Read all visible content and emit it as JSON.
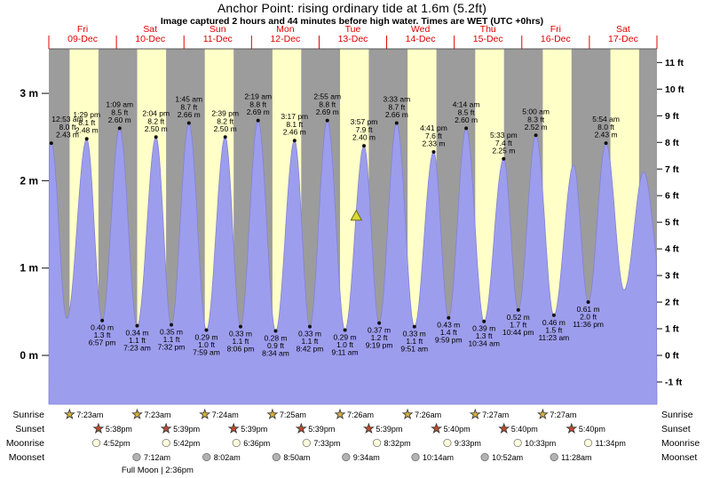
{
  "title": "Anchor Point: rising ordinary tide at 1.6m (5.2ft)",
  "subtitle": "Image captured 2 hours and 44 minutes before high water. Times are WET (UTC +0hrs)",
  "colors": {
    "night_band": "#9c9c9c",
    "day_band": "#ffffc8",
    "tide_fill": "#9d9ded",
    "tide_stroke": "#8282d8",
    "day_label": "#e00000",
    "marker_fill": "#d8d837",
    "marker_stroke": "#6b6b14",
    "axis_text": "#000000"
  },
  "chart_data": {
    "type": "area",
    "title": "Anchor Point: rising ordinary tide at 1.6m (5.2ft)",
    "x_axis": {
      "unit": "days",
      "start_label": "09-Dec",
      "end_label": "17-Dec",
      "hours_span": 216
    },
    "y_axis_m": [
      {
        "v": 3,
        "label": "3 m"
      },
      {
        "v": 2,
        "label": "2 m"
      },
      {
        "v": 1,
        "label": "1 m"
      },
      {
        "v": 0,
        "label": "0 m"
      }
    ],
    "y_axis_ft": [
      {
        "v": 11,
        "label": "11 ft"
      },
      {
        "v": 10,
        "label": "10 ft"
      },
      {
        "v": 9,
        "label": "9 ft"
      },
      {
        "v": 8,
        "label": "8 ft"
      },
      {
        "v": 7,
        "label": "7 ft"
      },
      {
        "v": 6,
        "label": "6 ft"
      },
      {
        "v": 5,
        "label": "5 ft"
      },
      {
        "v": 4,
        "label": "4 ft"
      },
      {
        "v": 3,
        "label": "3 ft"
      },
      {
        "v": 2,
        "label": "2 ft"
      },
      {
        "v": 1,
        "label": "1 ft"
      },
      {
        "v": 0,
        "label": "0 ft"
      },
      {
        "v": -1,
        "label": "-1 ft"
      }
    ],
    "days": [
      {
        "name": "Fri",
        "date": "09-Dec",
        "sunrise_t": 7.38,
        "sunset_t": 17.63
      },
      {
        "name": "Sat",
        "date": "10-Dec",
        "sunrise_t": 31.38,
        "sunset_t": 41.65
      },
      {
        "name": "Sun",
        "date": "11-Dec",
        "sunrise_t": 55.4,
        "sunset_t": 65.65
      },
      {
        "name": "Mon",
        "date": "12-Dec",
        "sunrise_t": 79.42,
        "sunset_t": 89.65
      },
      {
        "name": "Tue",
        "date": "13-Dec",
        "sunrise_t": 103.43,
        "sunset_t": 113.65
      },
      {
        "name": "Wed",
        "date": "14-Dec",
        "sunrise_t": 127.43,
        "sunset_t": 137.67
      },
      {
        "name": "Thu",
        "date": "15-Dec",
        "sunrise_t": 151.45,
        "sunset_t": 161.67
      },
      {
        "name": "Fri",
        "date": "16-Dec",
        "sunrise_t": 175.45,
        "sunset_t": 185.67
      },
      {
        "name": "Sat",
        "date": "17-Dec",
        "sunrise_t": 199.47,
        "sunset_t": 209.68
      }
    ],
    "tide_extremes": [
      {
        "t": -5.6,
        "m": 0.45,
        "type": "low"
      },
      {
        "t": 0.88,
        "m": 2.43,
        "type": "high",
        "labels": [
          "12:53 am",
          "8.0 ft",
          "2.43 m"
        ]
      },
      {
        "t": 6.4,
        "m": 0.42,
        "type": "low"
      },
      {
        "t": 13.48,
        "m": 2.48,
        "type": "high",
        "labels": [
          "1:29 pm",
          "8.1 ft",
          "2.48 m"
        ]
      },
      {
        "t": 18.95,
        "m": 0.4,
        "type": "low",
        "labels": [
          "0.40 m",
          "1.3 ft",
          "6:57 pm"
        ]
      },
      {
        "t": 25.15,
        "m": 2.6,
        "type": "high",
        "labels": [
          "1:09 am",
          "8.5 ft",
          "2.60 m"
        ]
      },
      {
        "t": 31.38,
        "m": 0.34,
        "type": "low",
        "labels": [
          "0.34 m",
          "1.1 ft",
          "7:23 am"
        ]
      },
      {
        "t": 38.07,
        "m": 2.5,
        "type": "high",
        "labels": [
          "2:04 pm",
          "8.2 ft",
          "2.50 m"
        ]
      },
      {
        "t": 43.53,
        "m": 0.35,
        "type": "low",
        "labels": [
          "0.35 m",
          "1.1 ft",
          "7:32 pm"
        ]
      },
      {
        "t": 49.75,
        "m": 2.66,
        "type": "high",
        "labels": [
          "1:45 am",
          "8.7 ft",
          "2.66 m"
        ]
      },
      {
        "t": 55.98,
        "m": 0.29,
        "type": "low",
        "labels": [
          "0.29 m",
          "1.0 ft",
          "7:59 am"
        ]
      },
      {
        "t": 62.65,
        "m": 2.5,
        "type": "high",
        "labels": [
          "2:39 pm",
          "8.2 ft",
          "2.50 m"
        ]
      },
      {
        "t": 68.1,
        "m": 0.33,
        "type": "low",
        "labels": [
          "0.33 m",
          "1.1 ft",
          "8:06 pm"
        ]
      },
      {
        "t": 74.32,
        "m": 2.69,
        "type": "high",
        "labels": [
          "2:19 am",
          "8.8 ft",
          "2.69 m"
        ]
      },
      {
        "t": 80.57,
        "m": 0.28,
        "type": "low",
        "labels": [
          "0.28 m",
          "0.9 ft",
          "8:34 am"
        ]
      },
      {
        "t": 87.28,
        "m": 2.46,
        "type": "high",
        "labels": [
          "3:17 pm",
          "8.1 ft",
          "2.46 m"
        ]
      },
      {
        "t": 92.7,
        "m": 0.33,
        "type": "low",
        "labels": [
          "0.33 m",
          "1.1 ft",
          "8:42 pm"
        ]
      },
      {
        "t": 98.92,
        "m": 2.69,
        "type": "high",
        "labels": [
          "2:55 am",
          "8.8 ft",
          "2.69 m"
        ]
      },
      {
        "t": 105.18,
        "m": 0.29,
        "type": "low",
        "labels": [
          "0.29 m",
          "1.0 ft",
          "9:11 am"
        ]
      },
      {
        "t": 111.95,
        "m": 2.4,
        "type": "high",
        "labels": [
          "3:57 pm",
          "7.9 ft",
          "2.40 m"
        ]
      },
      {
        "t": 117.32,
        "m": 0.37,
        "type": "low",
        "labels": [
          "0.37 m",
          "1.2 ft",
          "9:19 pm"
        ]
      },
      {
        "t": 123.55,
        "m": 2.66,
        "type": "high",
        "labels": [
          "3:33 am",
          "8.7 ft",
          "2.66 m"
        ]
      },
      {
        "t": 129.85,
        "m": 0.33,
        "type": "low",
        "labels": [
          "0.33 m",
          "1.1 ft",
          "9:51 am"
        ]
      },
      {
        "t": 136.68,
        "m": 2.33,
        "type": "high",
        "labels": [
          "4:41 pm",
          "7.6 ft",
          "2.33 m"
        ]
      },
      {
        "t": 141.98,
        "m": 0.43,
        "type": "low",
        "labels": [
          "0.43 m",
          "1.4 ft",
          "9:59 pm"
        ]
      },
      {
        "t": 148.23,
        "m": 2.6,
        "type": "high",
        "labels": [
          "4:14 am",
          "8.5 ft",
          "2.60 m"
        ]
      },
      {
        "t": 154.57,
        "m": 0.39,
        "type": "low",
        "labels": [
          "0.39 m",
          "1.3 ft",
          "10:34 am"
        ]
      },
      {
        "t": 161.55,
        "m": 2.25,
        "type": "high",
        "labels": [
          "5:33 pm",
          "7.4 ft",
          "2.25 m"
        ]
      },
      {
        "t": 166.73,
        "m": 0.52,
        "type": "low",
        "labels": [
          "0.52 m",
          "1.7 ft",
          "10:44 pm"
        ]
      },
      {
        "t": 173.0,
        "m": 2.52,
        "type": "high",
        "labels": [
          "5:00 am",
          "8.3 ft",
          "2.52 m"
        ]
      },
      {
        "t": 179.38,
        "m": 0.46,
        "type": "low",
        "labels": [
          "0.46 m",
          "1.5 ft",
          "11:23 am"
        ]
      },
      {
        "t": 186.4,
        "m": 2.18,
        "type": "high"
      },
      {
        "t": 191.6,
        "m": 0.61,
        "type": "low",
        "labels": [
          "0.61 m",
          "2.0 ft",
          "11:36 pm"
        ]
      },
      {
        "t": 197.9,
        "m": 2.43,
        "type": "high",
        "labels": [
          "5:54 am",
          "8.0 ft",
          "2.43 m"
        ]
      },
      {
        "t": 204.3,
        "m": 0.75,
        "type": "low"
      },
      {
        "t": 211.3,
        "m": 2.1,
        "type": "high"
      },
      {
        "t": 218.0,
        "m": 0.8,
        "type": "low"
      }
    ],
    "marker": {
      "t": 109.2,
      "m": 1.6,
      "height_label": "1.6m (5.2ft)"
    }
  },
  "astro": {
    "rows": [
      {
        "label": "Sunrise",
        "icon": "star",
        "icon_name": "sunrise-star-icon",
        "icon_fill": "#d8b13c",
        "icon_stroke": "#3c3c3c",
        "events": [
          {
            "t": 7.38,
            "label": "7:23am"
          },
          {
            "t": 31.38,
            "label": "7:23am"
          },
          {
            "t": 55.4,
            "label": "7:24am"
          },
          {
            "t": 79.42,
            "label": "7:25am"
          },
          {
            "t": 103.43,
            "label": "7:26am"
          },
          {
            "t": 127.43,
            "label": "7:26am"
          },
          {
            "t": 151.45,
            "label": "7:27am"
          },
          {
            "t": 175.45,
            "label": "7:27am"
          }
        ]
      },
      {
        "label": "Sunset",
        "icon": "star",
        "icon_name": "sunset-star-icon",
        "icon_fill": "#c14a2d",
        "icon_stroke": "#3c3c3c",
        "events": [
          {
            "t": 17.63,
            "label": "5:38pm"
          },
          {
            "t": 41.65,
            "label": "5:39pm"
          },
          {
            "t": 65.65,
            "label": "5:39pm"
          },
          {
            "t": 89.65,
            "label": "5:39pm"
          },
          {
            "t": 113.65,
            "label": "5:39pm"
          },
          {
            "t": 137.67,
            "label": "5:40pm"
          },
          {
            "t": 161.67,
            "label": "5:40pm"
          },
          {
            "t": 185.67,
            "label": "5:40pm"
          }
        ]
      },
      {
        "label": "Moonrise",
        "icon": "circle",
        "icon_name": "moonrise-icon",
        "icon_fill": "#ffffdc",
        "icon_stroke": "#8a8a8a",
        "events": [
          {
            "t": 16.87,
            "label": "4:52pm"
          },
          {
            "t": 41.7,
            "label": "5:42pm"
          },
          {
            "t": 66.6,
            "label": "6:36pm"
          },
          {
            "t": 91.55,
            "label": "7:33pm"
          },
          {
            "t": 116.53,
            "label": "8:32pm"
          },
          {
            "t": 141.55,
            "label": "9:33pm"
          },
          {
            "t": 166.55,
            "label": "10:33pm"
          },
          {
            "t": 191.57,
            "label": "11:34pm"
          }
        ]
      },
      {
        "label": "Moonset",
        "icon": "circle",
        "icon_name": "moonset-icon",
        "icon_fill": "#b3b3b3",
        "icon_stroke": "#7a7a7a",
        "events": [
          {
            "t": 31.2,
            "label": "7:12am"
          },
          {
            "t": 56.03,
            "label": "8:02am"
          },
          {
            "t": 80.83,
            "label": "8:50am"
          },
          {
            "t": 105.57,
            "label": "9:34am"
          },
          {
            "t": 130.23,
            "label": "10:14am"
          },
          {
            "t": 154.87,
            "label": "10:52am"
          },
          {
            "t": 179.47,
            "label": "11:28am"
          }
        ]
      }
    ],
    "full_moon_note": "Full Moon | 2:36pm",
    "full_moon_t": 38.6
  }
}
